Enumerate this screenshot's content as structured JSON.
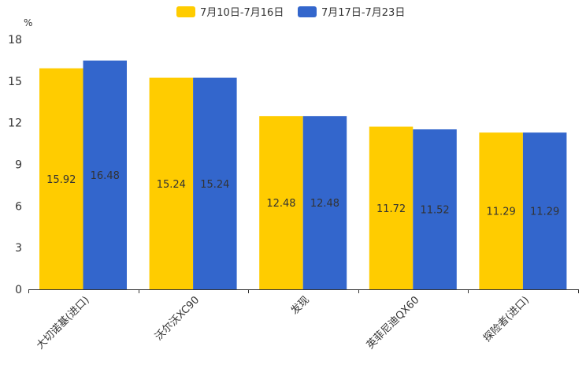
{
  "chart_data": {
    "type": "bar",
    "title": "",
    "ylabel": "%",
    "xlabel": "",
    "ylim": [
      0,
      18
    ],
    "yticks": [
      0,
      3,
      6,
      9,
      12,
      15,
      18
    ],
    "categories": [
      "大切诺基(进口)",
      "沃尔沃XC90",
      "发现",
      "英菲尼迪QX60",
      "探险者(进口)"
    ],
    "series": [
      {
        "name": "7月10日-7月16日",
        "color": "#ffcc00",
        "values": [
          15.92,
          15.24,
          12.48,
          11.72,
          11.29
        ]
      },
      {
        "name": "7月17日-7月23日",
        "color": "#3366cc",
        "values": [
          16.48,
          15.24,
          12.48,
          11.52,
          11.29
        ]
      }
    ],
    "legend": "top-center",
    "grid": false
  }
}
